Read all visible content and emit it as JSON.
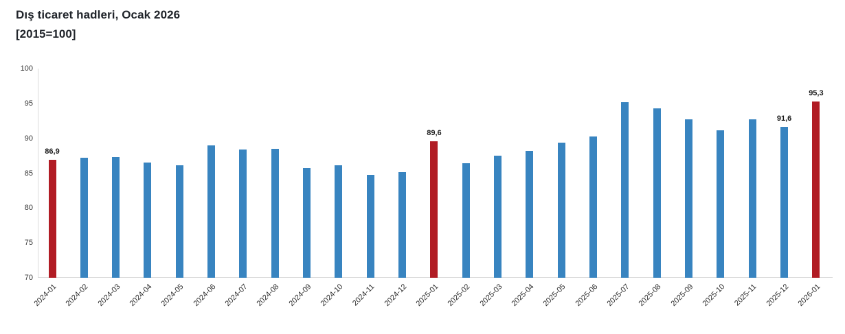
{
  "header": {
    "title": "Dış ticaret hadleri, Ocak 2026",
    "subtitle": "[2015=100]"
  },
  "colors": {
    "bar_default": "#3884c0",
    "bar_highlight": "#b11c24",
    "axis_line": "#d9d9d9",
    "tick_text": "#383838",
    "title_text": "#21252b",
    "value_label_text": "#1a1a1a"
  },
  "chart_data": {
    "type": "bar",
    "title": "Dış ticaret hadleri, Ocak 2026",
    "subtitle": "[2015=100]",
    "xlabel": "",
    "ylabel": "",
    "ylim": [
      70,
      100
    ],
    "yticks": [
      70,
      75,
      80,
      85,
      90,
      95,
      100
    ],
    "grid": false,
    "legend": false,
    "categories": [
      "2024-01",
      "2024-02",
      "2024-03",
      "2024-04",
      "2024-05",
      "2024-06",
      "2024-07",
      "2024-08",
      "2024-09",
      "2024-10",
      "2024-11",
      "2024-12",
      "2025-01",
      "2025-02",
      "2025-03",
      "2025-04",
      "2025-05",
      "2025-06",
      "2025-07",
      "2025-08",
      "2025-09",
      "2025-10",
      "2025-11",
      "2025-12",
      "2026-01"
    ],
    "values": [
      86.9,
      87.2,
      87.3,
      86.5,
      86.1,
      89.0,
      88.4,
      88.5,
      85.7,
      86.1,
      84.8,
      85.1,
      89.6,
      86.4,
      87.5,
      88.2,
      89.4,
      90.3,
      95.2,
      94.3,
      92.7,
      91.1,
      92.7,
      91.6,
      95.3
    ],
    "highlighted_categories": [
      "2024-01",
      "2025-01",
      "2026-01"
    ],
    "data_labels": [
      {
        "category": "2024-01",
        "text": "86,9"
      },
      {
        "category": "2025-01",
        "text": "89,6"
      },
      {
        "category": "2025-12",
        "text": "91,6"
      },
      {
        "category": "2026-01",
        "text": "95,3"
      }
    ]
  }
}
